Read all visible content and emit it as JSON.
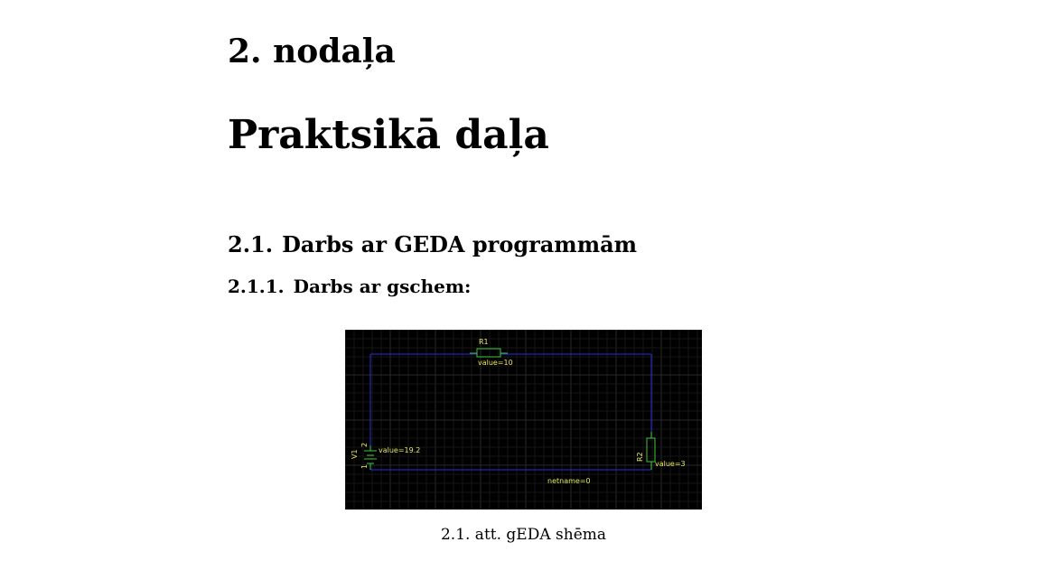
{
  "chapter": {
    "number": "2. nodaļa",
    "title": "Praktsikā daļa"
  },
  "section": {
    "number": "2.1.",
    "title": "Darbs ar GEDA programmām"
  },
  "subsection": {
    "number": "2.1.1.",
    "title": "Darbs ar gschem:"
  },
  "figure": {
    "caption": "2.1. att. gEDA shēma",
    "schematic": {
      "r1_ref": "R1",
      "r1_value": "value=10",
      "r2_ref": "R2",
      "r2_value": "value=3",
      "v1_ref": "V1",
      "v1_value": "value=19.2",
      "v1_pin_top": "2",
      "v1_pin_bottom": "1",
      "net_label": "netname=0"
    },
    "colors": {
      "background": "#000000",
      "grid": "#1e1e1e",
      "wire": "#2b2bd8",
      "component": "#3ec83e",
      "text": "#e8e85a"
    }
  }
}
